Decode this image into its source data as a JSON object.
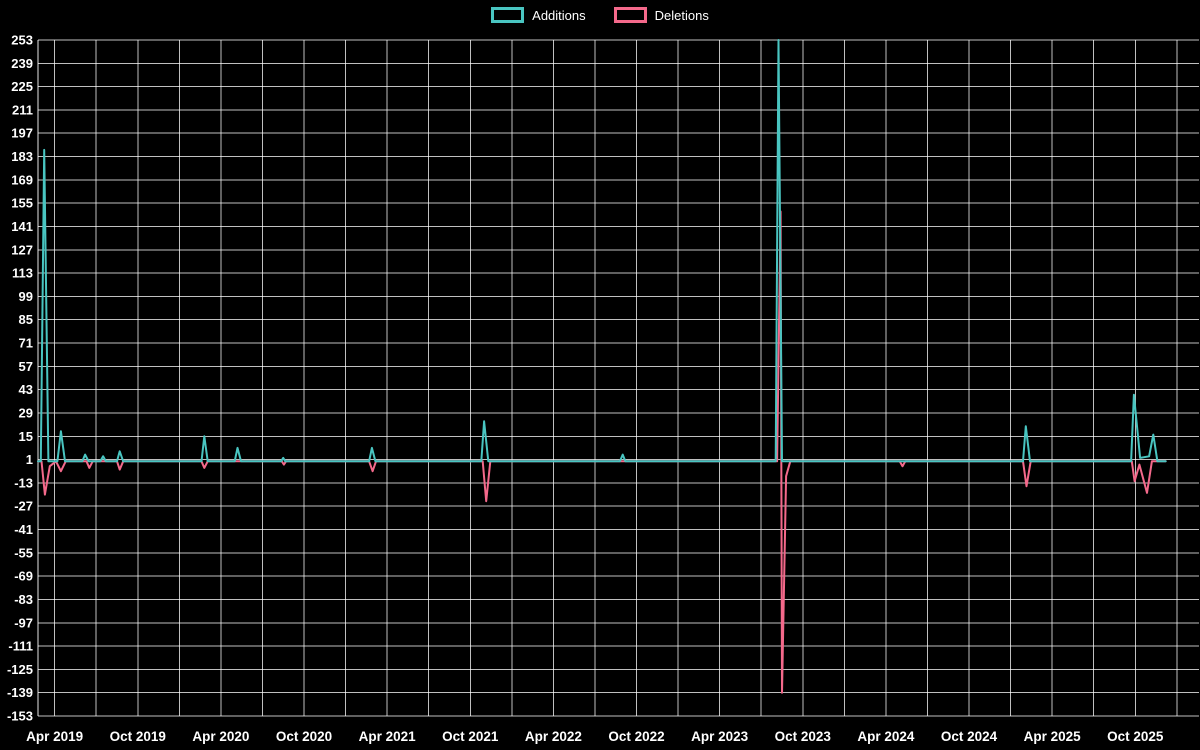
{
  "legend": {
    "items": [
      {
        "label": "Additions",
        "color": "#49c5c1"
      },
      {
        "label": "Deletions",
        "color": "#f4698b"
      }
    ]
  },
  "chart_data": {
    "type": "line",
    "title": "",
    "background": "#000000",
    "grid": true,
    "legend_position": "top-center",
    "ylim": [
      -153,
      253
    ],
    "xlim": [
      -1.2,
      82.6
    ],
    "x_unit": "months since Apr 2019",
    "y_ticks": [
      253,
      239,
      225,
      211,
      197,
      183,
      169,
      155,
      141,
      127,
      113,
      99,
      85,
      71,
      57,
      43,
      29,
      15,
      1,
      -13,
      -27,
      -41,
      -55,
      -69,
      -83,
      -97,
      -111,
      -125,
      -139,
      -153
    ],
    "x_ticks": [
      {
        "label": "Apr 2019",
        "m": 0
      },
      {
        "label": "Oct 2019",
        "m": 6
      },
      {
        "label": "Apr 2020",
        "m": 12
      },
      {
        "label": "Oct 2020",
        "m": 18
      },
      {
        "label": "Apr 2021",
        "m": 24
      },
      {
        "label": "Oct 2021",
        "m": 30
      },
      {
        "label": "Apr 2022",
        "m": 36
      },
      {
        "label": "Oct 2022",
        "m": 42
      },
      {
        "label": "Apr 2023",
        "m": 48
      },
      {
        "label": "Oct 2023",
        "m": 54
      },
      {
        "label": "Apr 2024",
        "m": 60
      },
      {
        "label": "Oct 2024",
        "m": 66
      },
      {
        "label": "Apr 2025",
        "m": 72
      },
      {
        "label": "Oct 2025",
        "m": 78
      }
    ],
    "x_grid": {
      "start": 0,
      "end": 81,
      "step": 3
    },
    "series": [
      {
        "name": "Additions",
        "color": "#49c5c1",
        "points": [
          [
            -1.2,
            0
          ],
          [
            -1.0,
            0
          ],
          [
            -0.75,
            187
          ],
          [
            -0.45,
            0
          ],
          [
            0.2,
            0
          ],
          [
            0.45,
            18
          ],
          [
            0.75,
            0
          ],
          [
            2.0,
            0
          ],
          [
            2.2,
            4
          ],
          [
            2.45,
            0
          ],
          [
            3.3,
            0
          ],
          [
            3.5,
            3
          ],
          [
            3.7,
            0
          ],
          [
            4.5,
            0
          ],
          [
            4.7,
            6
          ],
          [
            4.95,
            0
          ],
          [
            10.6,
            0
          ],
          [
            10.8,
            15
          ],
          [
            11.05,
            0
          ],
          [
            13.0,
            0
          ],
          [
            13.2,
            8
          ],
          [
            13.45,
            0
          ],
          [
            16.35,
            0
          ],
          [
            16.5,
            2
          ],
          [
            16.65,
            0
          ],
          [
            22.7,
            0
          ],
          [
            22.9,
            8
          ],
          [
            23.15,
            0
          ],
          [
            30.8,
            0
          ],
          [
            31.0,
            24
          ],
          [
            31.3,
            0
          ],
          [
            40.8,
            0
          ],
          [
            41.0,
            4
          ],
          [
            41.2,
            0
          ],
          [
            52.05,
            0
          ],
          [
            52.25,
            253
          ],
          [
            52.5,
            0
          ],
          [
            69.9,
            0
          ],
          [
            70.1,
            21
          ],
          [
            70.4,
            0
          ],
          [
            77.7,
            0
          ],
          [
            77.9,
            40
          ],
          [
            78.35,
            2
          ],
          [
            79.0,
            3
          ],
          [
            79.3,
            16
          ],
          [
            79.6,
            0
          ],
          [
            80.2,
            0
          ]
        ]
      },
      {
        "name": "Deletions",
        "color": "#f4698b",
        "points": [
          [
            -1.2,
            0
          ],
          [
            -0.95,
            0
          ],
          [
            -0.7,
            -20
          ],
          [
            -0.35,
            -3
          ],
          [
            0.1,
            0
          ],
          [
            0.45,
            -6
          ],
          [
            0.8,
            0
          ],
          [
            2.3,
            0
          ],
          [
            2.5,
            -4
          ],
          [
            2.75,
            0
          ],
          [
            4.5,
            0
          ],
          [
            4.7,
            -5
          ],
          [
            4.95,
            0
          ],
          [
            10.6,
            0
          ],
          [
            10.8,
            -4
          ],
          [
            11.05,
            0
          ],
          [
            16.4,
            0
          ],
          [
            16.55,
            -2
          ],
          [
            16.7,
            0
          ],
          [
            22.7,
            0
          ],
          [
            22.95,
            -6
          ],
          [
            23.2,
            0
          ],
          [
            30.9,
            0
          ],
          [
            31.15,
            -24
          ],
          [
            31.45,
            0
          ],
          [
            52.15,
            0
          ],
          [
            52.4,
            150
          ],
          [
            52.5,
            -139
          ],
          [
            52.8,
            -9
          ],
          [
            53.1,
            0
          ],
          [
            61.0,
            0
          ],
          [
            61.2,
            -3
          ],
          [
            61.4,
            0
          ],
          [
            69.9,
            0
          ],
          [
            70.15,
            -15
          ],
          [
            70.45,
            0
          ],
          [
            77.75,
            0
          ],
          [
            77.95,
            -12
          ],
          [
            78.3,
            -2
          ],
          [
            78.85,
            -19
          ],
          [
            79.2,
            0
          ],
          [
            80.2,
            0
          ]
        ]
      }
    ]
  }
}
